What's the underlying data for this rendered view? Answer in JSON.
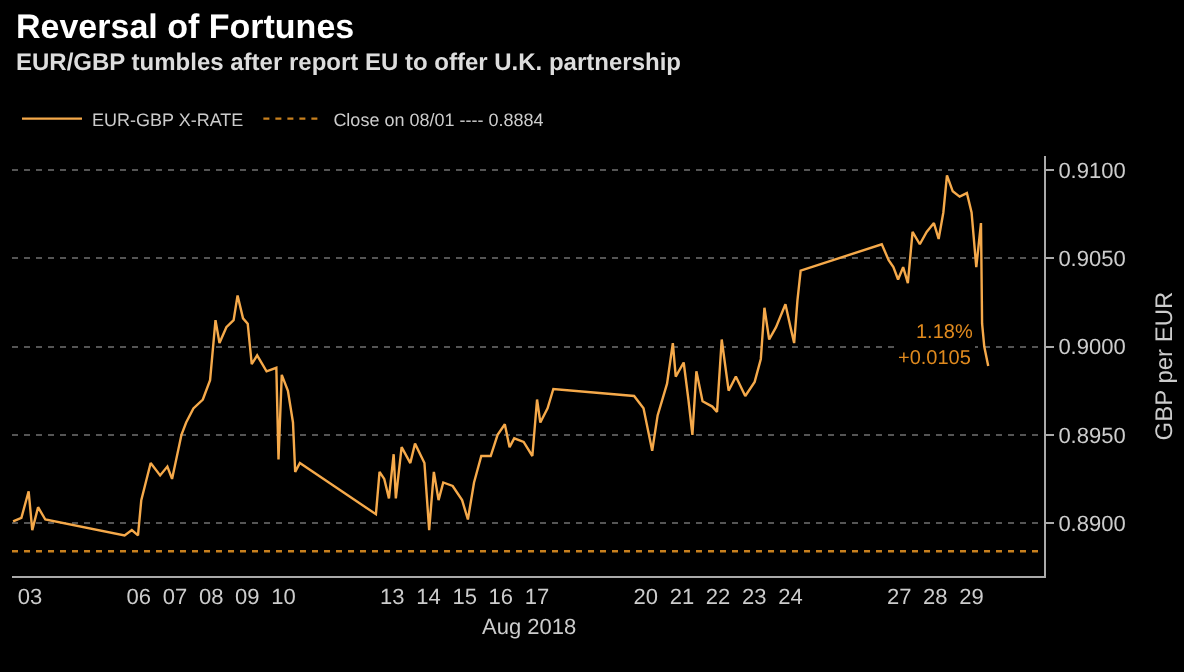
{
  "chart_data": {
    "type": "line",
    "title": "Reversal of Fortunes",
    "subtitle": "EUR/GBP tumbles after report EU to offer U.K. partnership",
    "xlabel": "Aug 2018",
    "ylabel": "GBP per EUR",
    "x": [
      "2018-08-03T00:43",
      "2018-08-03T06:14",
      "2018-08-03T11:02",
      "2018-08-03T13:26",
      "2018-08-03T17:17",
      "2018-08-03T22:05",
      "2018-08-06T02:38",
      "2018-08-06T07:26",
      "2018-08-06T11:31",
      "2018-08-06T13:41",
      "2018-08-06T19:55",
      "2018-08-07T02:10",
      "2018-08-07T06:58",
      "2018-08-07T10:05",
      "2018-08-07T16:19",
      "2018-08-07T19:26",
      "2018-08-08T00:14",
      "2018-08-08T06:29",
      "2018-08-08T11:17",
      "2018-08-08T14:53",
      "2018-08-08T17:31",
      "2018-08-08T22:05",
      "2018-08-09T02:53",
      "2018-08-09T05:31",
      "2018-08-09T09:07",
      "2018-08-09T12:14",
      "2018-08-09T14:53",
      "2018-08-09T18:29",
      "2018-08-10T00:43",
      "2018-08-10T07:12",
      "2018-08-10T08:38",
      "2018-08-10T10:48",
      "2018-08-10T14:53",
      "2018-08-10T18:14",
      "2018-08-10T19:41",
      "2018-08-10T22:48",
      "2018-08-13T01:12",
      "2018-08-13T03:36",
      "2018-08-13T06:43",
      "2018-08-13T09:50",
      "2018-08-13T12:58",
      "2018-08-13T14:24",
      "2018-08-13T18:14",
      "2018-08-14T00:00",
      "2018-08-14T03:07",
      "2018-08-14T09:22",
      "2018-08-14T12:29",
      "2018-08-14T15:36",
      "2018-08-14T18:43",
      "2018-08-14T21:50",
      "2018-08-15T04:05",
      "2018-08-15T10:19",
      "2018-08-15T14:10",
      "2018-08-15T18:14",
      "2018-08-15T23:02",
      "2018-08-16T05:17",
      "2018-08-16T09:50",
      "2018-08-16T14:38",
      "2018-08-16T17:46",
      "2018-08-16T20:53",
      "2018-08-17T03:07",
      "2018-08-17T08:53",
      "2018-08-17T12:00",
      "2018-08-17T14:10",
      "2018-08-17T18:58",
      "2018-08-17T22:48",
      "2018-08-20T04:19",
      "2018-08-20T10:34",
      "2018-08-20T16:19",
      "2018-08-20T19:55",
      "2018-08-21T02:10",
      "2018-08-21T06:00",
      "2018-08-21T07:55",
      "2018-08-21T13:12",
      "2018-08-21T16:19",
      "2018-08-21T18:58",
      "2018-08-21T21:36",
      "2018-08-22T01:41",
      "2018-08-22T08:10",
      "2018-08-22T11:17",
      "2018-08-22T14:24",
      "2018-08-22T18:58",
      "2018-08-22T23:46",
      "2018-08-23T06:00",
      "2018-08-23T12:14",
      "2018-08-23T16:19",
      "2018-08-23T18:43",
      "2018-08-23T21:50",
      "2018-08-24T02:24",
      "2018-08-24T08:38",
      "2018-08-24T12:00",
      "2018-08-24T14:24",
      "2018-08-24T16:34",
      "2018-08-24T18:43",
      "2018-08-27T00:29",
      "2018-08-27T05:02",
      "2018-08-27T08:10",
      "2018-08-27T11:17",
      "2018-08-27T14:38",
      "2018-08-27T17:46",
      "2018-08-27T20:53",
      "2018-08-28T01:41",
      "2018-08-28T06:14",
      "2018-08-28T11:02",
      "2018-08-28T14:10",
      "2018-08-28T17:17",
      "2018-08-28T19:41",
      "2018-08-28T23:31",
      "2018-08-29T04:05",
      "2018-08-29T08:53",
      "2018-08-29T12:00",
      "2018-08-29T15:07",
      "2018-08-29T18:14",
      "2018-08-29T18:58",
      "2018-08-29T20:24",
      "2018-08-29T23:02"
    ],
    "series": [
      {
        "name": "EUR-GBP X-RATE",
        "color": "#f5a94a",
        "values": [
          0.8901,
          0.8903,
          0.8918,
          0.8896,
          0.8909,
          0.8902,
          0.8893,
          0.8896,
          0.8893,
          0.8913,
          0.8934,
          0.8927,
          0.8932,
          0.8925,
          0.895,
          0.8957,
          0.8965,
          0.897,
          0.8981,
          0.9015,
          0.9002,
          0.9011,
          0.9015,
          0.9029,
          0.9016,
          0.9013,
          0.899,
          0.8995,
          0.8986,
          0.8988,
          0.8936,
          0.8984,
          0.8975,
          0.8957,
          0.8929,
          0.8934,
          0.8905,
          0.8929,
          0.8925,
          0.8914,
          0.8939,
          0.8914,
          0.8943,
          0.8934,
          0.8945,
          0.8934,
          0.8896,
          0.8929,
          0.8913,
          0.8923,
          0.8921,
          0.8913,
          0.8902,
          0.8923,
          0.8938,
          0.8938,
          0.895,
          0.8956,
          0.8943,
          0.8948,
          0.8946,
          0.8938,
          0.897,
          0.8957,
          0.8965,
          0.8976,
          0.8972,
          0.8965,
          0.8941,
          0.8961,
          0.8979,
          0.9002,
          0.8983,
          0.8991,
          0.897,
          0.895,
          0.8986,
          0.8969,
          0.8966,
          0.8963,
          0.9004,
          0.8975,
          0.8983,
          0.8972,
          0.898,
          0.8993,
          0.9022,
          0.9004,
          0.9011,
          0.9024,
          0.9011,
          0.9002,
          0.9026,
          0.9043,
          0.9058,
          0.9049,
          0.9045,
          0.9038,
          0.9045,
          0.9036,
          0.9065,
          0.9058,
          0.9065,
          0.907,
          0.9061,
          0.9076,
          0.9097,
          0.9088,
          0.9085,
          0.9087,
          0.9076,
          0.9045,
          0.907,
          0.9013,
          0.9,
          0.8989
        ]
      }
    ],
    "ref_lines": [
      {
        "axis": "y",
        "value": 0.8884,
        "label": "Close on 08/01 ---- 0.8884",
        "color": "#c8801e",
        "line_style": "dotted"
      }
    ],
    "annotations": [
      {
        "text": "1.18%",
        "x": "2018-08-29T23:02",
        "y": 0.8989
      },
      {
        "text": "+0.0105",
        "x": "2018-08-29T23:02",
        "y": 0.8989
      }
    ],
    "xlim": [
      "2018-08-03T00:00",
      "2018-08-31T12:00"
    ],
    "xticks": [
      {
        "value": "2018-08-03T12:00",
        "label": "03"
      },
      {
        "value": "2018-08-06T12:00",
        "label": "06"
      },
      {
        "value": "2018-08-07T12:00",
        "label": "07"
      },
      {
        "value": "2018-08-08T12:00",
        "label": "08"
      },
      {
        "value": "2018-08-09T12:00",
        "label": "09"
      },
      {
        "value": "2018-08-10T12:00",
        "label": "10"
      },
      {
        "value": "2018-08-13T12:00",
        "label": "13"
      },
      {
        "value": "2018-08-14T12:00",
        "label": "14"
      },
      {
        "value": "2018-08-15T12:00",
        "label": "15"
      },
      {
        "value": "2018-08-16T12:00",
        "label": "16"
      },
      {
        "value": "2018-08-17T12:00",
        "label": "17"
      },
      {
        "value": "2018-08-20T12:00",
        "label": "20"
      },
      {
        "value": "2018-08-21T12:00",
        "label": "21"
      },
      {
        "value": "2018-08-22T12:00",
        "label": "22"
      },
      {
        "value": "2018-08-23T12:00",
        "label": "23"
      },
      {
        "value": "2018-08-24T12:00",
        "label": "24"
      },
      {
        "value": "2018-08-27T12:00",
        "label": "27"
      },
      {
        "value": "2018-08-28T12:00",
        "label": "28"
      },
      {
        "value": "2018-08-29T12:00",
        "label": "29"
      }
    ],
    "ylim": [
      0.887,
      0.9108
    ],
    "yticks": [
      {
        "value": 0.89,
        "label": "0.8900"
      },
      {
        "value": 0.895,
        "label": "0.8950"
      },
      {
        "value": 0.9,
        "label": "0.9000"
      },
      {
        "value": 0.905,
        "label": "0.9050"
      },
      {
        "value": 0.91,
        "label": "0.9100"
      }
    ],
    "grid": "y",
    "legend": "top left",
    "marker": "none",
    "line_style": "solid"
  }
}
